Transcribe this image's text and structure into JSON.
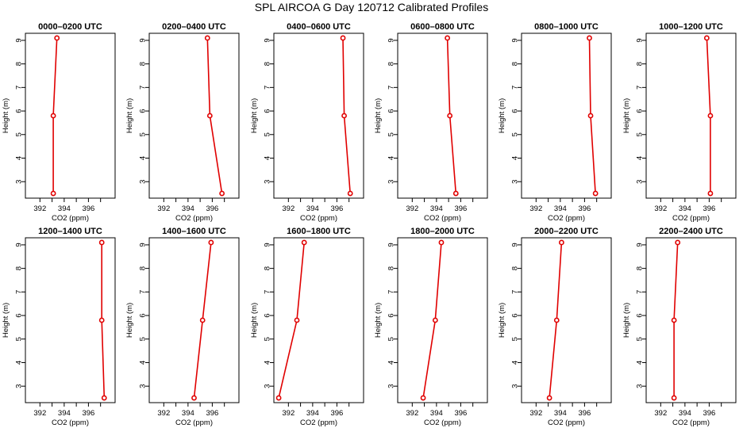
{
  "chart_data": {
    "type": "line",
    "title": "SPL AIRCOA G  Day 120712  Calibrated Profiles",
    "xlabel": "CO2 (ppm)",
    "ylabel": "Height (m)",
    "xlim": [
      390.8,
      398.2
    ],
    "ylim": [
      2.3,
      9.3
    ],
    "xticks": [
      392,
      394,
      396
    ],
    "yticks": [
      3,
      4,
      5,
      6,
      7,
      8,
      9
    ],
    "grid": false,
    "panels": [
      {
        "title": "0000–0200 UTC",
        "points": [
          {
            "co2": 393.1,
            "height": 2.5
          },
          {
            "co2": 393.1,
            "height": 5.8
          },
          {
            "co2": 393.4,
            "height": 9.1
          }
        ]
      },
      {
        "title": "0200–0400 UTC",
        "points": [
          {
            "co2": 396.8,
            "height": 2.5
          },
          {
            "co2": 395.8,
            "height": 5.8
          },
          {
            "co2": 395.6,
            "height": 9.1
          }
        ]
      },
      {
        "title": "0400–0600 UTC",
        "points": [
          {
            "co2": 397.1,
            "height": 2.5
          },
          {
            "co2": 396.6,
            "height": 5.8
          },
          {
            "co2": 396.5,
            "height": 9.1
          }
        ]
      },
      {
        "title": "0600–0800 UTC",
        "points": [
          {
            "co2": 395.6,
            "height": 2.5
          },
          {
            "co2": 395.1,
            "height": 5.8
          },
          {
            "co2": 394.9,
            "height": 9.1
          }
        ]
      },
      {
        "title": "0800–1000 UTC",
        "points": [
          {
            "co2": 396.9,
            "height": 2.5
          },
          {
            "co2": 396.5,
            "height": 5.8
          },
          {
            "co2": 396.4,
            "height": 9.1
          }
        ]
      },
      {
        "title": "1000–1200 UTC",
        "points": [
          {
            "co2": 396.1,
            "height": 2.5
          },
          {
            "co2": 396.1,
            "height": 5.8
          },
          {
            "co2": 395.8,
            "height": 9.1
          }
        ]
      },
      {
        "title": "1200–1400 UTC",
        "points": [
          {
            "co2": 397.3,
            "height": 2.5
          },
          {
            "co2": 397.1,
            "height": 5.8
          },
          {
            "co2": 397.1,
            "height": 9.1
          }
        ]
      },
      {
        "title": "1400–1600 UTC",
        "points": [
          {
            "co2": 394.5,
            "height": 2.5
          },
          {
            "co2": 395.2,
            "height": 5.8
          },
          {
            "co2": 395.9,
            "height": 9.1
          }
        ]
      },
      {
        "title": "1600–1800 UTC",
        "points": [
          {
            "co2": 391.2,
            "height": 2.5
          },
          {
            "co2": 392.7,
            "height": 5.8
          },
          {
            "co2": 393.3,
            "height": 9.1
          }
        ]
      },
      {
        "title": "1800–2000 UTC",
        "points": [
          {
            "co2": 392.9,
            "height": 2.5
          },
          {
            "co2": 393.9,
            "height": 5.8
          },
          {
            "co2": 394.4,
            "height": 9.1
          }
        ]
      },
      {
        "title": "2000–2200 UTC",
        "points": [
          {
            "co2": 393.1,
            "height": 2.5
          },
          {
            "co2": 393.7,
            "height": 5.8
          },
          {
            "co2": 394.1,
            "height": 9.1
          }
        ]
      },
      {
        "title": "2200–2400 UTC",
        "points": [
          {
            "co2": 393.1,
            "height": 2.5
          },
          {
            "co2": 393.1,
            "height": 5.8
          },
          {
            "co2": 393.4,
            "height": 9.1
          }
        ]
      }
    ],
    "colors": {
      "series": "#e00000",
      "axes": "#000000"
    }
  }
}
